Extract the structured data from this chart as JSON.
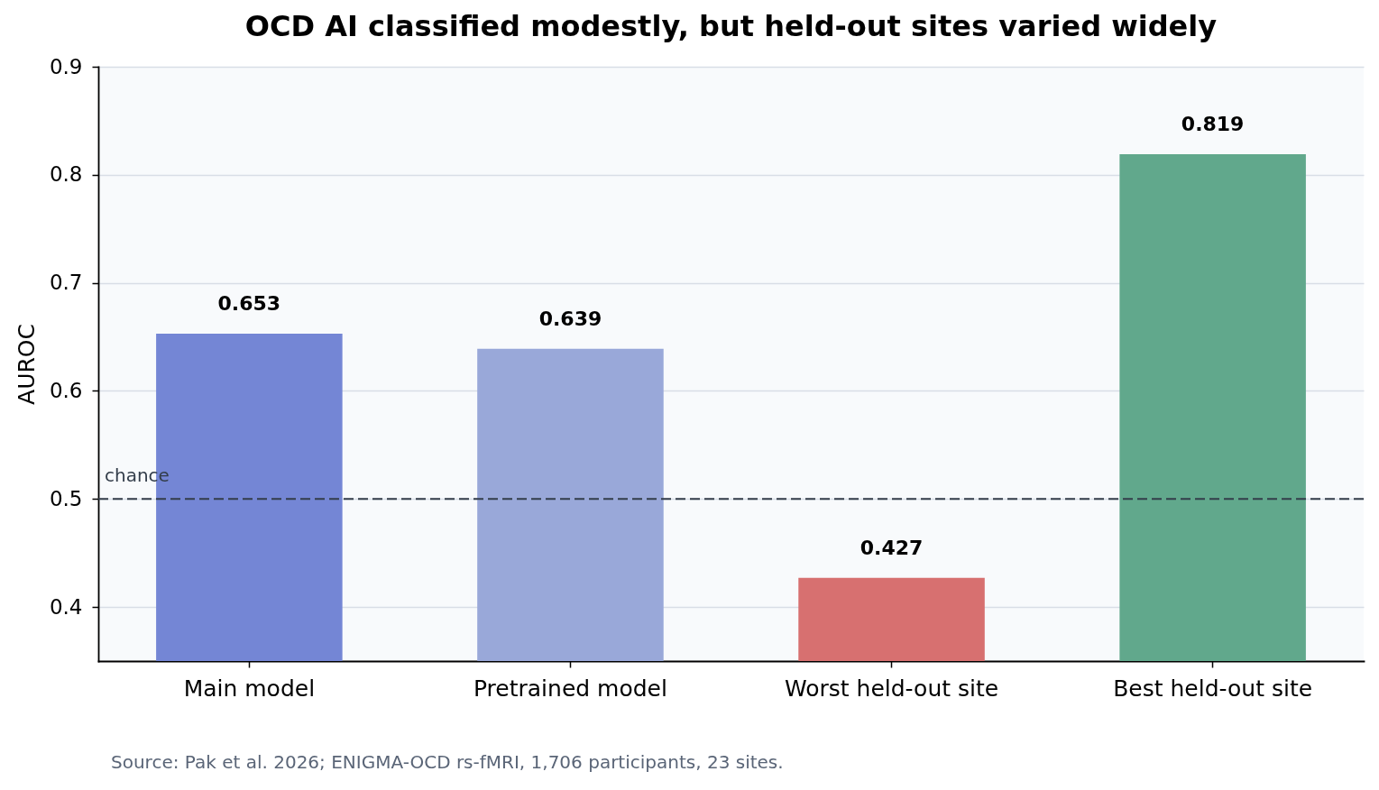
{
  "chart_data": {
    "type": "bar",
    "title": "OCD AI classified modestly, but held-out sites varied widely",
    "ylabel": "AUROC",
    "categories": [
      "Main model",
      "Pretrained model",
      "Worst held-out site",
      "Best held-out site"
    ],
    "values": [
      0.653,
      0.639,
      0.427,
      0.819
    ],
    "colors": [
      "#7486d5",
      "#99a8d9",
      "#d77070",
      "#61a88c"
    ],
    "ylim": [
      0.35,
      0.9
    ],
    "yticks": [
      0.4,
      0.5,
      0.6,
      0.7,
      0.8,
      0.9
    ],
    "grid": "y",
    "data_labels": true,
    "ref_lines": [
      {
        "axis": "y",
        "value": 0.5,
        "label": "chance",
        "color": "#333d4a",
        "line_style": "dashed"
      }
    ],
    "annotations": [
      "Source: Pak et al. 2026; ENIGMA-OCD rs-fMRI, 1,706 participants, 23 sites."
    ]
  }
}
